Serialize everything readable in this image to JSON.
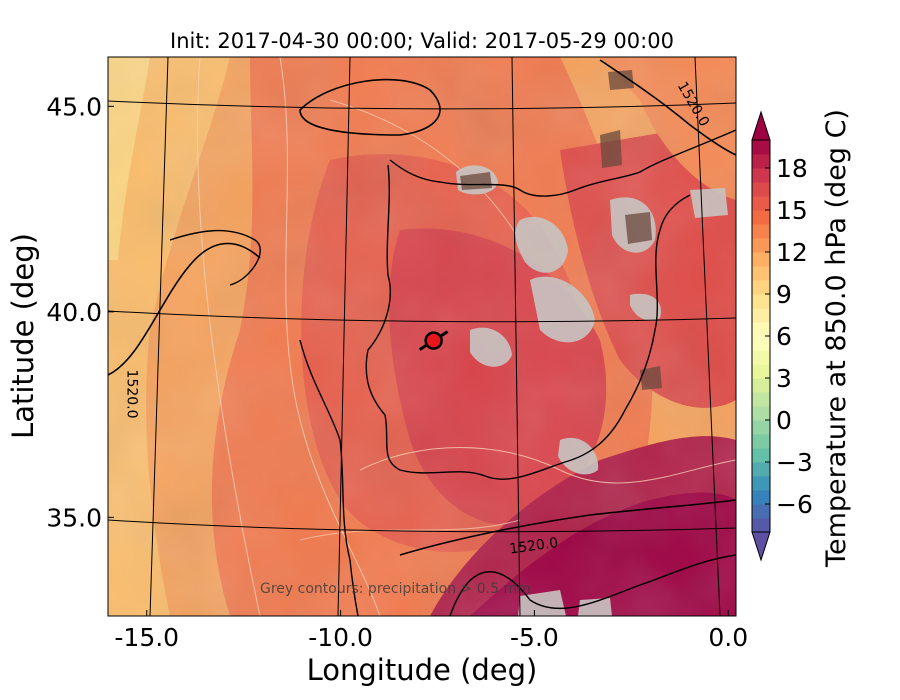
{
  "chart_data": {
    "type": "heatmap",
    "title": "Init: 2017-04-30 00:00; Valid: 2017-05-29 00:00",
    "xlabel": "Longitude (deg)",
    "ylabel": "Latitude (deg)",
    "x_ticks": [
      {
        "value": -15.0,
        "label": "-15.0"
      },
      {
        "value": -10.0,
        "label": "-10.0"
      },
      {
        "value": -5.0,
        "label": "-5.0"
      },
      {
        "value": 0.0,
        "label": "0.0"
      }
    ],
    "y_ticks": [
      {
        "value": 35.0,
        "label": "35.0"
      },
      {
        "value": 40.0,
        "label": "40.0"
      },
      {
        "value": 45.0,
        "label": "45.0"
      }
    ],
    "xlim": [
      -16.0,
      0.2
    ],
    "ylim": [
      32.6,
      46.2
    ],
    "colorbar": {
      "label": "Temperature at 850.0 hPa (deg C)",
      "vmin": -8,
      "vmax": 20,
      "ticks": [
        {
          "value": -6,
          "label": "−6"
        },
        {
          "value": -3,
          "label": "−3"
        },
        {
          "value": 0,
          "label": "0"
        },
        {
          "value": 3,
          "label": "3"
        },
        {
          "value": 6,
          "label": "6"
        },
        {
          "value": 9,
          "label": "9"
        },
        {
          "value": 12,
          "label": "12"
        },
        {
          "value": 15,
          "label": "15"
        },
        {
          "value": 18,
          "label": "18"
        }
      ],
      "extend": "both",
      "colormap": "Spectral_r"
    },
    "contour_labels": [
      {
        "text": "1520.0",
        "lon": -5.0,
        "lat": 34.2
      },
      {
        "text": "1520.0",
        "lon": -15.5,
        "lat": 38.0
      },
      {
        "text": "1520.0",
        "lon": -1.0,
        "lat": 45.0
      }
    ],
    "annotation": "Grey contours: precipitation > 0.5 mm",
    "marker": {
      "lon": -7.6,
      "lat": 39.3,
      "color": "#e8161b"
    }
  }
}
